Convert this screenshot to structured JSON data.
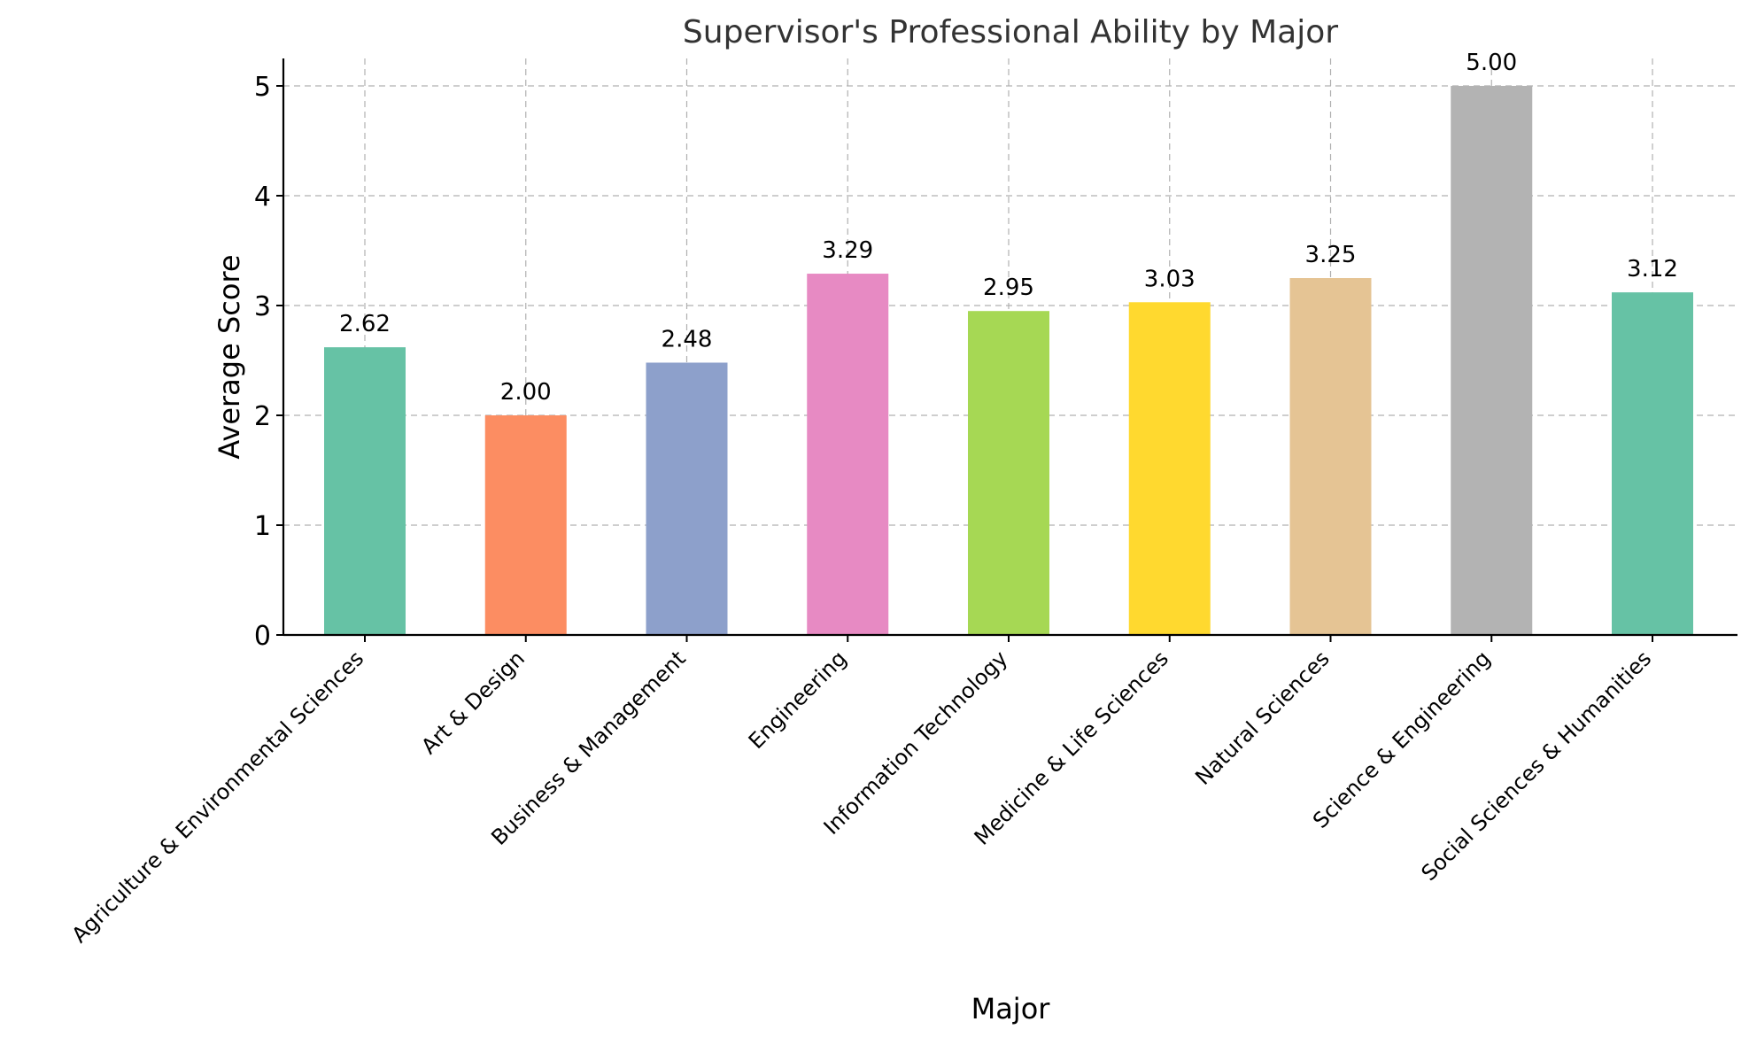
{
  "chart_data": {
    "type": "bar",
    "title": "Supervisor's Professional Ability by Major",
    "xlabel": "Major",
    "ylabel": "Average Score",
    "categories": [
      "Agriculture & Environmental Sciences",
      "Art & Design",
      "Business & Management",
      "Engineering",
      "Information Technology",
      "Medicine & Life Sciences",
      "Natural Sciences",
      "Science & Engineering",
      "Social Sciences & Humanities"
    ],
    "values": [
      2.62,
      2.0,
      2.48,
      3.29,
      2.95,
      3.03,
      3.25,
      5.0,
      3.12
    ],
    "value_labels": [
      "2.62",
      "2.00",
      "2.48",
      "3.29",
      "2.95",
      "3.03",
      "3.25",
      "5.00",
      "3.12"
    ],
    "colors": [
      "#66c2a5",
      "#fc8d62",
      "#8da0cb",
      "#e78ac3",
      "#a6d854",
      "#ffd92f",
      "#e5c494",
      "#b3b3b3",
      "#66c2a5"
    ],
    "ylim": [
      0,
      5.25
    ],
    "yticks": [
      0,
      1,
      2,
      3,
      4,
      5
    ],
    "grid": true,
    "legend": false
  }
}
